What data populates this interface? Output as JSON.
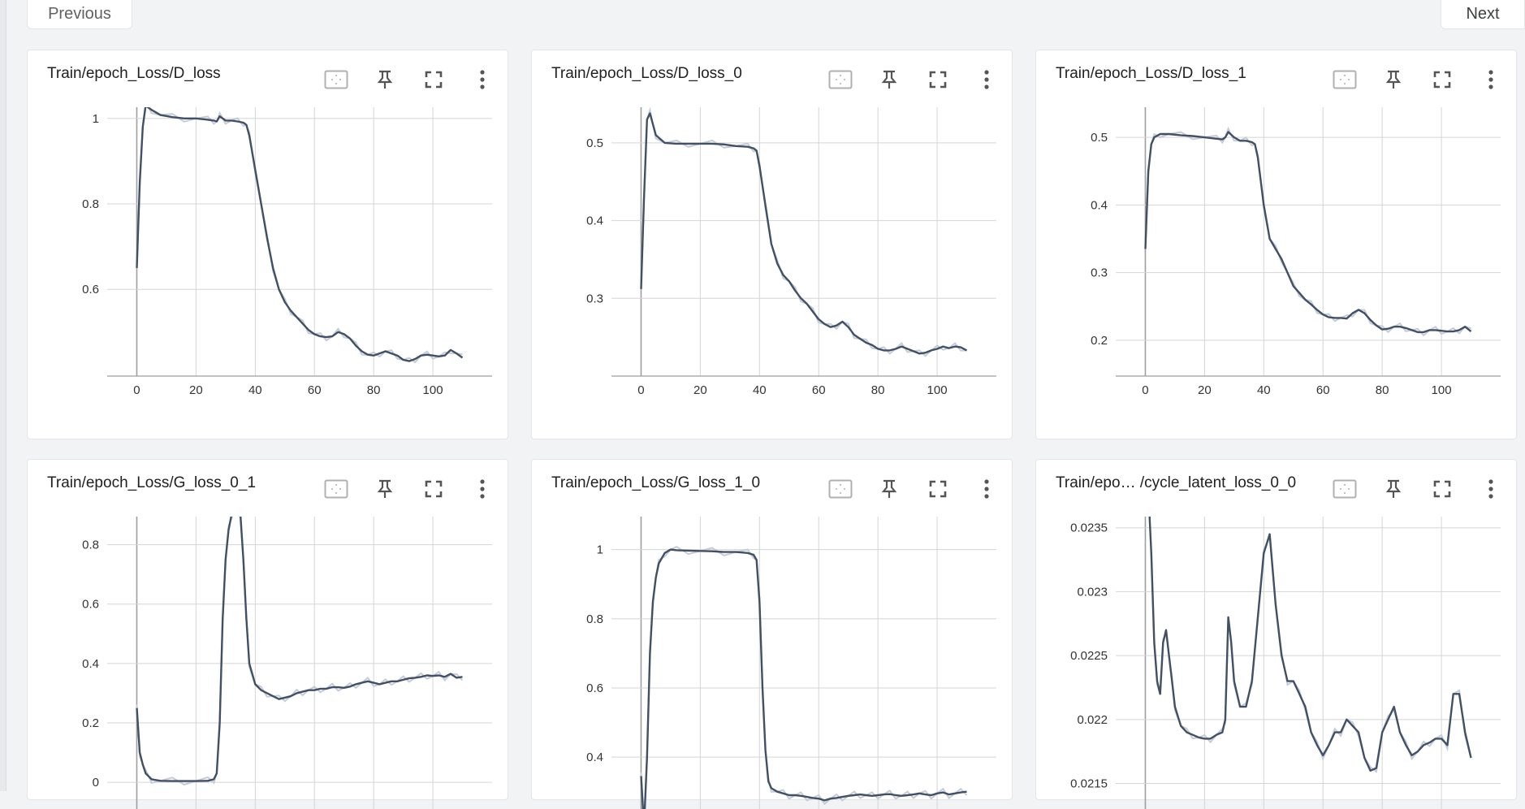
{
  "pager": {
    "previous_label": "Previous",
    "next_label": "Next"
  },
  "colors": {
    "smoothed": "#425066",
    "raw": "#c5ccd8",
    "grid": "#d5d5d5",
    "axis": "#9e9e9e"
  },
  "icons": [
    "fit-domain-icon",
    "pin-icon",
    "fullscreen-icon",
    "more-vert-icon"
  ],
  "cards": [
    {
      "title": "Train/epoch_Loss/D_loss",
      "chart_data": {
        "type": "line",
        "x_ticks": [
          "0",
          "20",
          "40",
          "60",
          "80",
          "100"
        ],
        "y_ticks": [
          "0.6",
          "0.8",
          "1"
        ],
        "xlim": [
          -10,
          120
        ],
        "ylim": [
          0.397,
          1.03
        ],
        "series": [
          {
            "x": [
              0,
              1,
              2,
              3,
              5,
              8,
              12,
              16,
              20,
              24,
              26,
              27,
              28,
              30,
              32,
              34,
              36,
              37,
              38,
              40,
              42,
              44,
              46,
              48,
              50,
              52,
              54,
              56,
              58,
              60,
              62,
              64,
              66,
              68,
              70,
              72,
              74,
              76,
              78,
              80,
              82,
              84,
              86,
              88,
              90,
              92,
              94,
              96,
              98,
              100,
              102,
              104,
              106,
              108,
              110
            ],
            "y": [
              0.65,
              0.85,
              0.98,
              1.03,
              1.02,
              1.008,
              1.003,
              1.0,
              1.0,
              0.997,
              0.995,
              0.993,
              1.005,
              0.995,
              0.995,
              0.993,
              0.99,
              0.985,
              0.96,
              0.88,
              0.8,
              0.72,
              0.65,
              0.6,
              0.57,
              0.55,
              0.535,
              0.52,
              0.505,
              0.495,
              0.49,
              0.488,
              0.49,
              0.5,
              0.495,
              0.485,
              0.468,
              0.455,
              0.447,
              0.445,
              0.45,
              0.455,
              0.45,
              0.445,
              0.435,
              0.432,
              0.437,
              0.445,
              0.447,
              0.445,
              0.443,
              0.445,
              0.458,
              0.45,
              0.44
            ]
          }
        ]
      }
    },
    {
      "title": "Train/epoch_Loss/D_loss_0",
      "chart_data": {
        "type": "line",
        "x_ticks": [
          "0",
          "20",
          "40",
          "60",
          "80",
          "100"
        ],
        "y_ticks": [
          "0.3",
          "0.4",
          "0.5"
        ],
        "xlim": [
          -10,
          120
        ],
        "ylim": [
          0.2,
          0.548
        ],
        "series": [
          {
            "x": [
              0,
              1,
              2,
              3,
              5,
              8,
              12,
              16,
              20,
              24,
              28,
              32,
              36,
              38,
              39,
              40,
              42,
              44,
              46,
              48,
              50,
              52,
              54,
              56,
              58,
              60,
              62,
              64,
              66,
              68,
              70,
              72,
              74,
              76,
              78,
              80,
              82,
              84,
              86,
              88,
              90,
              92,
              94,
              96,
              98,
              100,
              102,
              104,
              106,
              108,
              110
            ],
            "y": [
              0.312,
              0.43,
              0.53,
              0.538,
              0.51,
              0.5,
              0.499,
              0.499,
              0.499,
              0.499,
              0.498,
              0.496,
              0.495,
              0.493,
              0.49,
              0.47,
              0.42,
              0.37,
              0.345,
              0.33,
              0.322,
              0.31,
              0.3,
              0.293,
              0.283,
              0.273,
              0.267,
              0.263,
              0.265,
              0.27,
              0.263,
              0.253,
              0.248,
              0.243,
              0.24,
              0.235,
              0.233,
              0.233,
              0.235,
              0.238,
              0.235,
              0.232,
              0.229,
              0.23,
              0.233,
              0.235,
              0.238,
              0.236,
              0.238,
              0.237,
              0.233
            ]
          }
        ]
      }
    },
    {
      "title": "Train/epoch_Loss/D_loss_1",
      "chart_data": {
        "type": "line",
        "x_ticks": [
          "0",
          "20",
          "40",
          "60",
          "80",
          "100"
        ],
        "y_ticks": [
          "0.2",
          "0.3",
          "0.4",
          "0.5"
        ],
        "xlim": [
          -10,
          120
        ],
        "ylim": [
          0.147,
          0.547
        ],
        "series": [
          {
            "x": [
              0,
              1,
              2,
              3,
              5,
              8,
              12,
              16,
              20,
              24,
              26,
              27,
              28,
              30,
              32,
              34,
              36,
              37,
              38,
              40,
              42,
              44,
              46,
              48,
              50,
              52,
              54,
              56,
              58,
              60,
              62,
              64,
              66,
              68,
              70,
              72,
              74,
              76,
              78,
              80,
              82,
              84,
              86,
              88,
              90,
              92,
              94,
              96,
              98,
              100,
              102,
              104,
              106,
              108,
              110
            ],
            "y": [
              0.335,
              0.45,
              0.49,
              0.5,
              0.505,
              0.505,
              0.503,
              0.502,
              0.5,
              0.498,
              0.497,
              0.5,
              0.508,
              0.5,
              0.495,
              0.495,
              0.493,
              0.49,
              0.47,
              0.4,
              0.35,
              0.335,
              0.32,
              0.3,
              0.28,
              0.27,
              0.26,
              0.253,
              0.245,
              0.238,
              0.234,
              0.233,
              0.233,
              0.232,
              0.24,
              0.245,
              0.24,
              0.23,
              0.222,
              0.216,
              0.217,
              0.22,
              0.22,
              0.218,
              0.215,
              0.212,
              0.212,
              0.215,
              0.215,
              0.214,
              0.213,
              0.213,
              0.215,
              0.22,
              0.213
            ]
          }
        ]
      }
    },
    {
      "title": "Train/epoch_Loss/G_loss_0_1",
      "chart_data": {
        "type": "line",
        "x_ticks": [],
        "y_ticks": [
          "0",
          "0.2",
          "0.4",
          "0.6",
          "0.8"
        ],
        "xlim": [
          -10,
          120
        ],
        "ylim": [
          -0.09,
          0.9
        ],
        "series": [
          {
            "x": [
              0,
              1,
              2,
              3,
              5,
              8,
              12,
              16,
              20,
              24,
              26,
              27,
              28,
              29,
              30,
              31,
              32,
              33,
              34,
              35,
              36,
              37,
              38,
              40,
              42,
              44,
              46,
              48,
              50,
              52,
              54,
              56,
              58,
              60,
              62,
              64,
              66,
              68,
              70,
              72,
              74,
              76,
              78,
              80,
              82,
              84,
              86,
              88,
              90,
              92,
              94,
              96,
              98,
              100,
              102,
              104,
              106,
              108,
              110
            ],
            "y": [
              0.25,
              0.1,
              0.06,
              0.03,
              0.01,
              0.005,
              0.004,
              0.004,
              0.004,
              0.005,
              0.01,
              0.03,
              0.2,
              0.55,
              0.75,
              0.85,
              0.9,
              0.92,
              0.93,
              0.9,
              0.75,
              0.55,
              0.4,
              0.33,
              0.31,
              0.3,
              0.29,
              0.28,
              0.285,
              0.29,
              0.3,
              0.305,
              0.31,
              0.31,
              0.315,
              0.315,
              0.32,
              0.32,
              0.318,
              0.322,
              0.33,
              0.335,
              0.34,
              0.335,
              0.33,
              0.335,
              0.34,
              0.34,
              0.345,
              0.35,
              0.352,
              0.355,
              0.36,
              0.358,
              0.36,
              0.355,
              0.365,
              0.352,
              0.355
            ]
          }
        ]
      }
    },
    {
      "title": "Train/epoch_Loss/G_loss_1_0",
      "chart_data": {
        "type": "line",
        "x_ticks": [],
        "y_ticks": [
          "0.4",
          "0.6",
          "0.8",
          "1"
        ],
        "xlim": [
          -10,
          120
        ],
        "ylim": [
          0.25,
          1.1
        ],
        "series": [
          {
            "x": [
              0,
              1,
              2,
              3,
              4,
              5,
              6,
              8,
              10,
              12,
              16,
              20,
              24,
              28,
              32,
              36,
              38,
              39,
              40,
              41,
              42,
              43,
              44,
              46,
              48,
              50,
              52,
              54,
              56,
              58,
              60,
              62,
              64,
              66,
              68,
              70,
              72,
              74,
              76,
              78,
              80,
              82,
              84,
              86,
              88,
              90,
              92,
              94,
              96,
              98,
              100,
              102,
              104,
              106,
              108,
              110
            ],
            "y": [
              0.345,
              0.2,
              0.4,
              0.7,
              0.85,
              0.92,
              0.96,
              0.99,
              1.0,
              0.998,
              0.997,
              0.996,
              0.995,
              0.993,
              0.993,
              0.99,
              0.985,
              0.97,
              0.85,
              0.6,
              0.42,
              0.33,
              0.31,
              0.3,
              0.295,
              0.29,
              0.29,
              0.288,
              0.285,
              0.282,
              0.28,
              0.275,
              0.28,
              0.282,
              0.285,
              0.288,
              0.29,
              0.292,
              0.29,
              0.288,
              0.29,
              0.292,
              0.293,
              0.29,
              0.288,
              0.29,
              0.292,
              0.295,
              0.292,
              0.29,
              0.295,
              0.298,
              0.292,
              0.295,
              0.298,
              0.3
            ]
          }
        ]
      }
    },
    {
      "title": "Train/epo… /cycle_latent_loss_0_0",
      "chart_data": {
        "type": "line",
        "x_ticks": [],
        "y_ticks": [
          "0.0215",
          "0.022",
          "0.0225",
          "0.023",
          "0.0235"
        ],
        "xlim": [
          -10,
          120
        ],
        "ylim": [
          0.0213,
          0.0236
        ],
        "series": [
          {
            "x": [
              0,
              1,
              2,
              3,
              4,
              5,
              6,
              7,
              8,
              9,
              10,
              12,
              14,
              16,
              18,
              20,
              22,
              24,
              26,
              27,
              28,
              29,
              30,
              32,
              34,
              36,
              38,
              40,
              42,
              44,
              46,
              48,
              50,
              52,
              54,
              56,
              58,
              60,
              62,
              64,
              66,
              68,
              70,
              72,
              74,
              76,
              78,
              80,
              82,
              84,
              86,
              88,
              90,
              92,
              94,
              96,
              98,
              100,
              102,
              104,
              106,
              108,
              110
            ],
            "y": [
              0.0237,
              0.0238,
              0.0233,
              0.0226,
              0.0223,
              0.0222,
              0.0226,
              0.0227,
              0.0225,
              0.0223,
              0.0221,
              0.02195,
              0.0219,
              0.02188,
              0.02186,
              0.02185,
              0.02185,
              0.02188,
              0.0219,
              0.022,
              0.0228,
              0.0226,
              0.0223,
              0.0221,
              0.0221,
              0.0223,
              0.0228,
              0.0233,
              0.02345,
              0.0229,
              0.0225,
              0.0223,
              0.0223,
              0.0222,
              0.0221,
              0.0219,
              0.0218,
              0.02172,
              0.0218,
              0.0219,
              0.0219,
              0.022,
              0.02195,
              0.0219,
              0.0217,
              0.0216,
              0.02162,
              0.0219,
              0.022,
              0.0221,
              0.0219,
              0.0218,
              0.02172,
              0.02175,
              0.0218,
              0.02182,
              0.02185,
              0.02185,
              0.0218,
              0.0222,
              0.0222,
              0.0219,
              0.0217
            ]
          }
        ]
      }
    }
  ]
}
